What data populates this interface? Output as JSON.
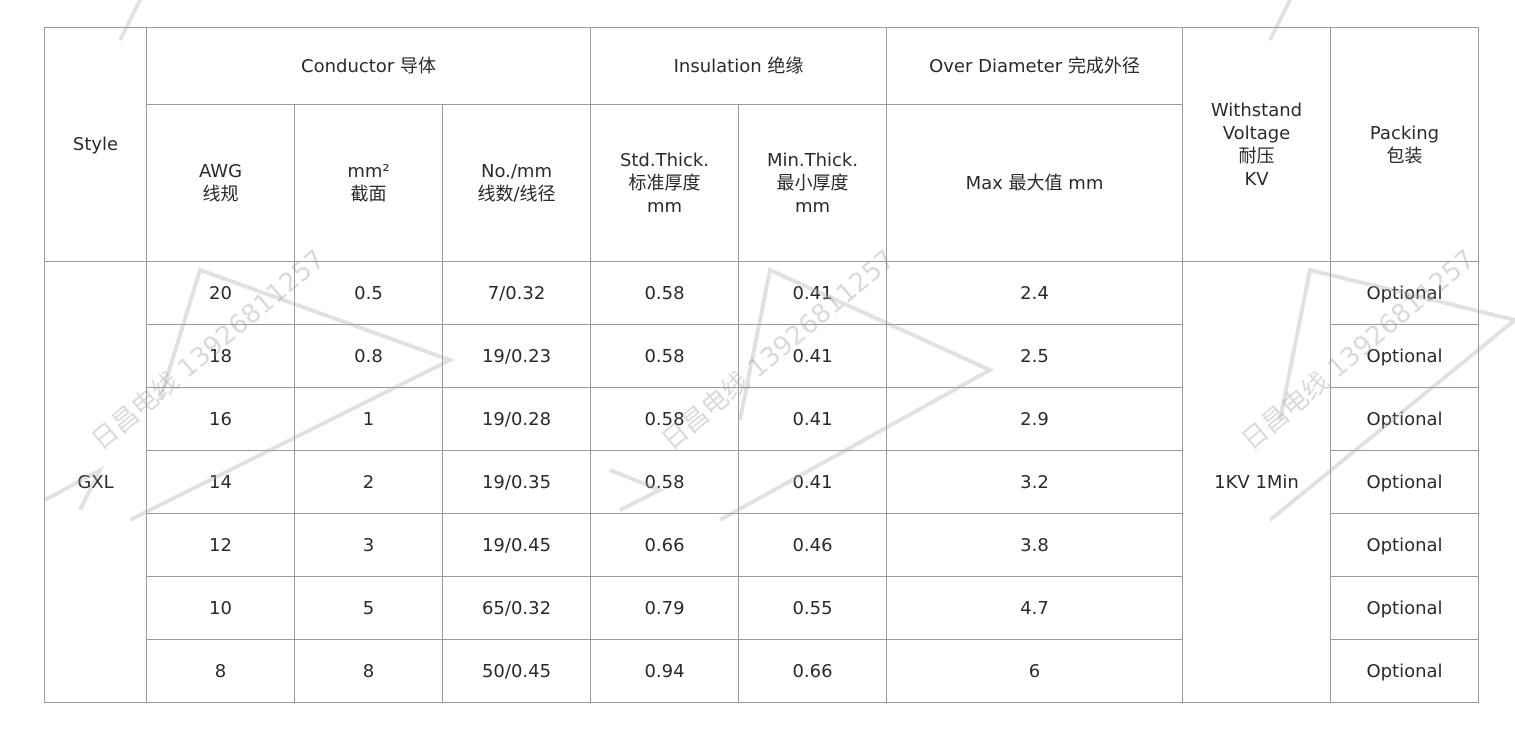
{
  "watermark": "日昌电线 13926811257",
  "headers": {
    "style": "Style",
    "conductor": "Conductor 导体",
    "insulation": "Insulation 绝缘",
    "over_diameter": "Over Diameter 完成外径",
    "withstand": [
      "Withstand",
      "Voltage",
      "耐压",
      "KV"
    ],
    "packing": [
      "Packing",
      "包装"
    ],
    "awg": [
      "AWG",
      "线规"
    ],
    "mm2": [
      "mm²",
      "截面"
    ],
    "no_mm": [
      "No./mm",
      "线数/线径"
    ],
    "std_thick": [
      "Std.Thick.",
      "标准厚度",
      "mm"
    ],
    "min_thick": [
      "Min.Thick.",
      "最小厚度",
      "mm"
    ],
    "max": "Max 最大值 mm"
  },
  "style_value": "GXL",
  "withstand_value": "1KV 1Min",
  "rows": [
    {
      "awg": "20",
      "mm2": "0.5",
      "no_mm": "7/0.32",
      "std": "0.58",
      "min": "0.41",
      "max": "2.4",
      "packing": "Optional"
    },
    {
      "awg": "18",
      "mm2": "0.8",
      "no_mm": "19/0.23",
      "std": "0.58",
      "min": "0.41",
      "max": "2.5",
      "packing": "Optional"
    },
    {
      "awg": "16",
      "mm2": "1",
      "no_mm": "19/0.28",
      "std": "0.58",
      "min": "0.41",
      "max": "2.9",
      "packing": "Optional"
    },
    {
      "awg": "14",
      "mm2": "2",
      "no_mm": "19/0.35",
      "std": "0.58",
      "min": "0.41",
      "max": "3.2",
      "packing": "Optional"
    },
    {
      "awg": "12",
      "mm2": "3",
      "no_mm": "19/0.45",
      "std": "0.66",
      "min": "0.46",
      "max": "3.8",
      "packing": "Optional"
    },
    {
      "awg": "10",
      "mm2": "5",
      "no_mm": "65/0.32",
      "std": "0.79",
      "min": "0.55",
      "max": "4.7",
      "packing": "Optional"
    },
    {
      "awg": "8",
      "mm2": "8",
      "no_mm": "50/0.45",
      "std": "0.94",
      "min": "0.66",
      "max": "6",
      "packing": "Optional"
    }
  ]
}
